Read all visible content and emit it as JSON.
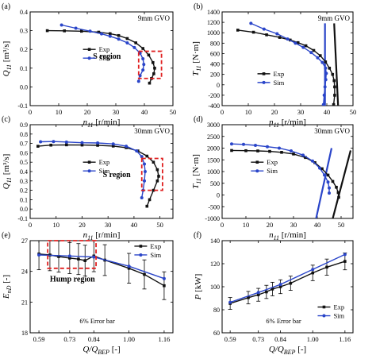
{
  "figure": {
    "series_names": [
      "Exp",
      "Sim"
    ],
    "colors": {
      "exp": "#111111",
      "sim": "#2a45c9",
      "highlight": "#e02020"
    }
  },
  "chart_data": [
    {
      "id": "a",
      "panel_label": "(a)",
      "type": "line",
      "note": "9mm GVO",
      "ylabel_main": "Q",
      "ylabel_sub": "11",
      "ylabel_unit": "[m³/s]",
      "xlabel_main": "n",
      "xlabel_sub": "11",
      "xlabel_unit": "[r/min]",
      "xlim": [
        0,
        50
      ],
      "ylim": [
        -0.1,
        0.4
      ],
      "xticks": [
        0,
        10,
        20,
        30,
        40,
        50
      ],
      "yticks": [
        -0.1,
        0.0,
        0.1,
        0.2,
        0.3,
        0.4
      ],
      "ytick_labels": [
        "-0.1",
        "0.0",
        "0.1",
        "0.2",
        "0.3",
        "0.4"
      ],
      "legend": "center",
      "annotation": "S region",
      "series": [
        {
          "name": "Exp",
          "points": [
            [
              6,
              0.3
            ],
            [
              12,
              0.299
            ],
            [
              18,
              0.297
            ],
            [
              24,
              0.292
            ],
            [
              28,
              0.284
            ],
            [
              31,
              0.274
            ],
            [
              34,
              0.258
            ],
            [
              37,
              0.235
            ],
            [
              39.5,
              0.205
            ],
            [
              41.5,
              0.17
            ],
            [
              43,
              0.13
            ],
            [
              43.6,
              0.1
            ],
            [
              43.3,
              0.07
            ],
            [
              42.5,
              0.045
            ],
            [
              41.8,
              0.02
            ]
          ]
        },
        {
          "name": "Sim",
          "points": [
            [
              11,
              0.33
            ],
            [
              16,
              0.313
            ],
            [
              21,
              0.297
            ],
            [
              25,
              0.283
            ],
            [
              28,
              0.27
            ],
            [
              31,
              0.255
            ],
            [
              34,
              0.235
            ],
            [
              36.5,
              0.21
            ],
            [
              38.5,
              0.18
            ],
            [
              39.5,
              0.15
            ],
            [
              39.8,
              0.12
            ],
            [
              39.5,
              0.09
            ],
            [
              38.5,
              0.06
            ],
            [
              38,
              0.03
            ]
          ]
        }
      ]
    },
    {
      "id": "b",
      "panel_label": "(b)",
      "type": "line",
      "note": "9mm GVO",
      "ylabel_main": "T",
      "ylabel_sub": "11",
      "ylabel_unit": "[N·m]",
      "xlabel_main": "n",
      "xlabel_sub": "11",
      "xlabel_unit": "[r/min]",
      "xlim": [
        0,
        50
      ],
      "ylim": [
        -400,
        1400
      ],
      "xticks": [
        0,
        10,
        20,
        30,
        40,
        50
      ],
      "yticks": [
        -400,
        -200,
        0,
        200,
        400,
        600,
        800,
        1000,
        1200,
        1400
      ],
      "ytick_labels": [
        "-400",
        "-200",
        "0",
        "200",
        "400",
        "600",
        "800",
        "1000",
        "1200",
        "1400"
      ],
      "legend": "center",
      "series": [
        {
          "name": "Exp",
          "points": [
            [
              6,
              1050
            ],
            [
              12,
              1010
            ],
            [
              17,
              960
            ],
            [
              22,
              910
            ],
            [
              26,
              860
            ],
            [
              29,
              810
            ],
            [
              32,
              750
            ],
            [
              35,
              660
            ],
            [
              37.5,
              560
            ],
            [
              39.5,
              440
            ],
            [
              41,
              320
            ],
            [
              42.2,
              200
            ],
            [
              42.8,
              80
            ],
            [
              43,
              -40
            ],
            [
              43,
              -200
            ],
            [
              42.6,
              -380
            ]
          ]
        },
        {
          "name": "Sim",
          "points": [
            [
              11,
              1180
            ],
            [
              16,
              1070
            ],
            [
              21,
              980
            ],
            [
              25,
              880
            ],
            [
              28,
              800
            ],
            [
              31,
              720
            ],
            [
              34,
              620
            ],
            [
              36.5,
              520
            ],
            [
              38.3,
              430
            ],
            [
              39.5,
              320
            ],
            [
              39.8,
              220
            ],
            [
              39.6,
              100
            ],
            [
              39.3,
              -40
            ],
            [
              39,
              -200
            ],
            [
              38.7,
              -380
            ]
          ]
        }
      ],
      "zero_torque_lines": [
        {
          "name": "Exp",
          "from": [
            42.8,
            1180
          ],
          "to": [
            44.3,
            -400
          ]
        },
        {
          "name": "Sim",
          "from": [
            39.3,
            1180
          ],
          "to": [
            39.3,
            -400
          ]
        }
      ]
    },
    {
      "id": "c",
      "panel_label": "(c)",
      "type": "line",
      "note": "30mm GVO",
      "ylabel_main": "Q",
      "ylabel_sub": "11",
      "ylabel_unit": "[m³/s]",
      "xlabel_main": "n",
      "xlabel_sub": "11",
      "xlabel_unit": "[r/min]",
      "xlim": [
        0,
        55
      ],
      "ylim": [
        -0.1,
        0.9
      ],
      "xticks": [
        0,
        10,
        20,
        30,
        40,
        50
      ],
      "yticks": [
        -0.1,
        0.0,
        0.1,
        0.2,
        0.3,
        0.4,
        0.5,
        0.6,
        0.7,
        0.8,
        0.9
      ],
      "ytick_labels": [
        "-0.1",
        "0.0",
        "0.1",
        "0.2",
        "0.3",
        "0.4",
        "0.5",
        "0.6",
        "0.7",
        "0.8",
        "0.9"
      ],
      "legend": "center",
      "annotation": "S region",
      "series": [
        {
          "name": "Exp",
          "points": [
            [
              3,
              0.67
            ],
            [
              8,
              0.682
            ],
            [
              14,
              0.685
            ],
            [
              20,
              0.683
            ],
            [
              26,
              0.68
            ],
            [
              32,
              0.672
            ],
            [
              37,
              0.655
            ],
            [
              41.5,
              0.62
            ],
            [
              45,
              0.565
            ],
            [
              47.5,
              0.5
            ],
            [
              49,
              0.42
            ],
            [
              49.5,
              0.35
            ],
            [
              49,
              0.3
            ],
            [
              47.5,
              0.2
            ],
            [
              46,
              0.1
            ],
            [
              45,
              0.03
            ]
          ]
        },
        {
          "name": "Sim",
          "points": [
            [
              4,
              0.718
            ],
            [
              9,
              0.72
            ],
            [
              14,
              0.715
            ],
            [
              20,
              0.708
            ],
            [
              26,
              0.705
            ],
            [
              32,
              0.695
            ],
            [
              37,
              0.67
            ],
            [
              41,
              0.62
            ],
            [
              43,
              0.56
            ],
            [
              44,
              0.48
            ],
            [
              44.3,
              0.4
            ],
            [
              44,
              0.3
            ],
            [
              43.5,
              0.2
            ],
            [
              43,
              0.12
            ]
          ]
        }
      ]
    },
    {
      "id": "d",
      "panel_label": "(d)",
      "type": "line",
      "note": "30mm GVO",
      "ylabel_main": "T",
      "ylabel_sub": "11",
      "ylabel_unit": "[N·m]",
      "xlabel_main": "n",
      "xlabel_sub": "11",
      "xlabel_unit": "[r/min]",
      "xlim": [
        0,
        55
      ],
      "ylim": [
        -1000,
        3000
      ],
      "xticks": [
        0,
        10,
        20,
        30,
        40,
        50
      ],
      "yticks": [
        -1000,
        -500,
        0,
        500,
        1000,
        1500,
        2000,
        2500,
        3000
      ],
      "ytick_labels": [
        "-1000",
        "-500",
        "0",
        "500",
        "1000",
        "1500",
        "2000",
        "2500",
        "3000"
      ],
      "legend": "center",
      "series": [
        {
          "name": "Exp",
          "points": [
            [
              4,
              1900
            ],
            [
              10,
              1890
            ],
            [
              15,
              1880
            ],
            [
              20,
              1860
            ],
            [
              25,
              1820
            ],
            [
              30,
              1750
            ],
            [
              35,
              1600
            ],
            [
              39,
              1380
            ],
            [
              42,
              1120
            ],
            [
              44.5,
              850
            ],
            [
              46.5,
              580
            ],
            [
              48,
              330
            ],
            [
              48.8,
              100
            ],
            [
              49,
              -100
            ]
          ]
        },
        {
          "name": "Sim",
          "points": [
            [
              4,
              2180
            ],
            [
              9,
              2160
            ],
            [
              14,
              2120
            ],
            [
              19,
              2060
            ],
            [
              24,
              2000
            ],
            [
              29,
              1880
            ],
            [
              34,
              1700
            ],
            [
              38,
              1450
            ],
            [
              41,
              1150
            ],
            [
              43,
              850
            ],
            [
              44.5,
              550
            ],
            [
              45,
              300
            ],
            [
              45,
              80
            ]
          ]
        }
      ],
      "zero_torque_lines": [
        {
          "name": "Exp",
          "from": [
            54,
            1900
          ],
          "to": [
            46.5,
            -1000
          ]
        },
        {
          "name": "Sim",
          "from": [
            46,
            2000
          ],
          "to": [
            39.5,
            -1000
          ]
        }
      ]
    },
    {
      "id": "e",
      "panel_label": "(e)",
      "type": "line",
      "note": "6% Error bar",
      "ylabel_main": "E",
      "ylabel_sub": "nD",
      "ylabel_unit": "[-]",
      "xlabel_main": "Q/Q",
      "xlabel_sub": "BEP",
      "xlabel_unit": "[-]",
      "xlim": [
        0.55,
        1.2
      ],
      "ylim": [
        18,
        27
      ],
      "xticks": [
        0.59,
        0.73,
        0.84,
        1.0,
        1.16
      ],
      "xtick_labels": [
        "0.59",
        "0.73",
        "0.84",
        "1.00",
        "1.16"
      ],
      "yticks": [
        18,
        21,
        24,
        27
      ],
      "ytick_labels": [
        "18",
        "21",
        "24",
        "27"
      ],
      "legend": "top-right",
      "annotation": "Hump region",
      "series": [
        {
          "name": "Exp",
          "x": [
            0.59,
            0.64,
            0.68,
            0.73,
            0.77,
            0.8,
            0.84,
            0.89,
            1.0,
            1.07,
            1.16
          ],
          "values": [
            25.7,
            25.6,
            25.45,
            25.3,
            25.2,
            25.05,
            25.5,
            25.1,
            24.3,
            23.7,
            22.6
          ],
          "error_pct": 6
        },
        {
          "name": "Sim",
          "x": [
            0.59,
            0.73,
            0.84,
            1.0,
            1.16
          ],
          "values": [
            25.6,
            25.5,
            25.4,
            24.5,
            23.3
          ]
        }
      ]
    },
    {
      "id": "f",
      "panel_label": "(f)",
      "type": "line",
      "note": "6% Error bar",
      "ylabel_main": "P",
      "ylabel_sub": "",
      "ylabel_unit": "[kW]",
      "xlabel_main": "Q/Q",
      "xlabel_sub": "BEP",
      "xlabel_unit": "[-]",
      "xlim": [
        0.55,
        1.2
      ],
      "ylim": [
        60,
        140
      ],
      "xticks": [
        0.59,
        0.73,
        0.84,
        1.0,
        1.16
      ],
      "xtick_labels": [
        "0.59",
        "0.73",
        "0.84",
        "1.00",
        "1.16"
      ],
      "yticks": [
        60,
        80,
        100,
        120,
        140
      ],
      "ytick_labels": [
        "60",
        "80",
        "100",
        "120",
        "140"
      ],
      "legend": "bottom-right",
      "series": [
        {
          "name": "Exp",
          "x": [
            0.59,
            0.68,
            0.73,
            0.77,
            0.8,
            0.84,
            0.89,
            1.0,
            1.07,
            1.16
          ],
          "values": [
            85.5,
            90.5,
            93,
            95.5,
            98,
            100,
            103,
            112,
            117,
            122
          ],
          "error_pct": 6
        },
        {
          "name": "Sim",
          "x": [
            0.59,
            0.73,
            0.84,
            1.0,
            1.16
          ],
          "values": [
            86.5,
            95,
            102,
            115,
            128
          ]
        }
      ]
    }
  ]
}
